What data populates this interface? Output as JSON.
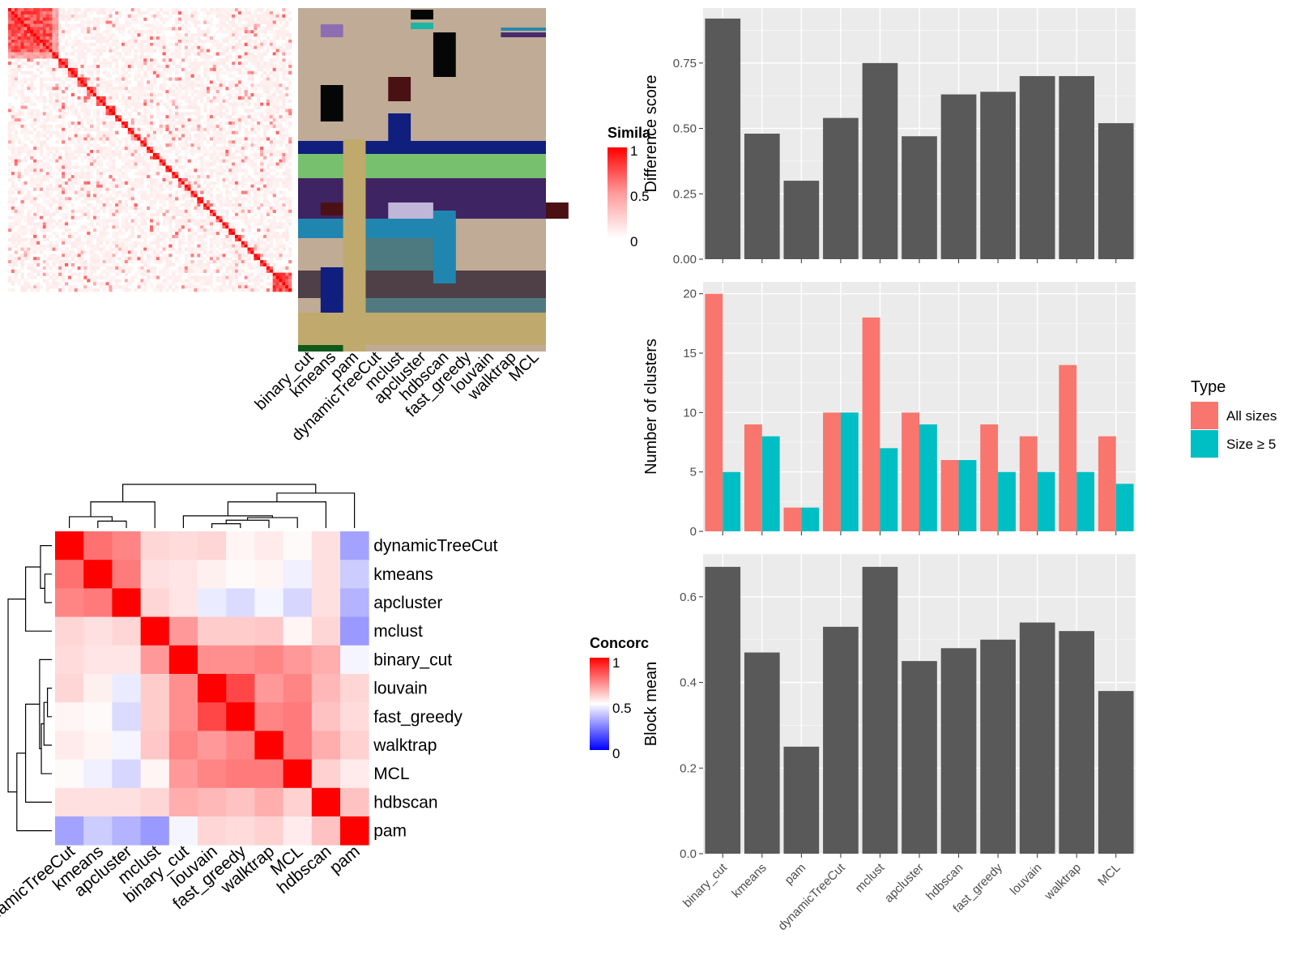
{
  "methods": [
    "binary_cut",
    "kmeans",
    "pam",
    "dynamicTreeCut",
    "mclust",
    "apcluster",
    "hdbscan",
    "fast_greedy",
    "louvain",
    "walktrap",
    "MCL"
  ],
  "similarity_panel": {
    "legend_title": "Simila",
    "legend_ticks": [
      "1",
      "0.5",
      "0"
    ],
    "colors": {
      "high": "#ff0000",
      "mid": "#ff9999",
      "low": "#ffffff"
    },
    "block_sizes": [
      14,
      2,
      3,
      3,
      3,
      3,
      3,
      3,
      2,
      2,
      2,
      2,
      2,
      2,
      2,
      2,
      2,
      2,
      2,
      2,
      2,
      2,
      2,
      2,
      2,
      2,
      2,
      2,
      2,
      2,
      2,
      2,
      2,
      6
    ],
    "class_colors": [
      "#c0ab96",
      "#c0ab96",
      "#c0ab96",
      "#c0ab96",
      "#c0ab96",
      "#c0ab96",
      "#c0ab96",
      "#c0ab96",
      "#c0ab96",
      "#c0ab96",
      "#c0ab96"
    ]
  },
  "concordance_panel": {
    "legend_title": "Concorc",
    "legend_ticks": [
      "1",
      "0.5",
      "0"
    ],
    "colors": {
      "high": "#ff0000",
      "mid": "#ffffff",
      "low": "#0000ff"
    },
    "order": [
      "dynamicTreeCut",
      "kmeans",
      "apcluster",
      "mclust",
      "binary_cut",
      "louvain",
      "fast_greedy",
      "walktrap",
      "MCL",
      "hdbscan",
      "pam"
    ],
    "matrix": [
      [
        1.0,
        0.78,
        0.74,
        0.58,
        0.57,
        0.58,
        0.52,
        0.54,
        0.51,
        0.56,
        0.32
      ],
      [
        0.78,
        1.0,
        0.76,
        0.56,
        0.55,
        0.53,
        0.51,
        0.52,
        0.47,
        0.56,
        0.4
      ],
      [
        0.74,
        0.76,
        1.0,
        0.58,
        0.55,
        0.46,
        0.43,
        0.48,
        0.42,
        0.56,
        0.35
      ],
      [
        0.58,
        0.56,
        0.58,
        1.0,
        0.7,
        0.6,
        0.6,
        0.61,
        0.52,
        0.58,
        0.3
      ],
      [
        0.57,
        0.55,
        0.55,
        0.7,
        1.0,
        0.72,
        0.72,
        0.74,
        0.7,
        0.66,
        0.48
      ],
      [
        0.58,
        0.53,
        0.46,
        0.6,
        0.72,
        1.0,
        0.86,
        0.7,
        0.74,
        0.64,
        0.58
      ],
      [
        0.52,
        0.51,
        0.43,
        0.6,
        0.72,
        0.86,
        1.0,
        0.74,
        0.76,
        0.62,
        0.57
      ],
      [
        0.54,
        0.52,
        0.48,
        0.61,
        0.74,
        0.7,
        0.74,
        1.0,
        0.76,
        0.66,
        0.59
      ],
      [
        0.51,
        0.47,
        0.42,
        0.52,
        0.7,
        0.74,
        0.76,
        0.76,
        1.0,
        0.59,
        0.54
      ],
      [
        0.56,
        0.56,
        0.56,
        0.58,
        0.66,
        0.64,
        0.62,
        0.66,
        0.59,
        1.0,
        0.62
      ],
      [
        0.32,
        0.4,
        0.35,
        0.3,
        0.48,
        0.58,
        0.57,
        0.59,
        0.54,
        0.62,
        1.0
      ]
    ]
  },
  "chart_data": [
    {
      "type": "bar",
      "categories": [
        "binary_cut",
        "kmeans",
        "pam",
        "dynamicTreeCut",
        "mclust",
        "apcluster",
        "hdbscan",
        "fast_greedy",
        "louvain",
        "walktrap",
        "MCL"
      ],
      "values": [
        0.92,
        0.48,
        0.3,
        0.54,
        0.75,
        0.47,
        0.63,
        0.64,
        0.7,
        0.7,
        0.52
      ],
      "ylabel": "Difference score",
      "ylim": [
        0,
        0.96
      ],
      "yticks": [
        "0.00",
        "0.25",
        "0.50",
        "0.75"
      ],
      "bar_color": "#595959",
      "grid": true
    },
    {
      "type": "bar",
      "categories": [
        "binary_cut",
        "kmeans",
        "pam",
        "dynamicTreeCut",
        "mclust",
        "apcluster",
        "hdbscan",
        "fast_greedy",
        "louvain",
        "walktrap",
        "MCL"
      ],
      "series": [
        {
          "name": "All sizes",
          "values": [
            20,
            9,
            2,
            10,
            18,
            10,
            6,
            9,
            8,
            14,
            8
          ],
          "color": "#f8766d"
        },
        {
          "name": "Size ≥ 5",
          "values": [
            5,
            8,
            2,
            10,
            7,
            9,
            6,
            5,
            5,
            5,
            4
          ],
          "color": "#00bfc4"
        }
      ],
      "ylabel": "Number of clusters",
      "ylim": [
        0,
        21
      ],
      "yticks": [
        "0",
        "5",
        "10",
        "15",
        "20"
      ],
      "legend_title": "Type",
      "legend_placement": "right",
      "grid": true
    },
    {
      "type": "bar",
      "categories": [
        "binary_cut",
        "kmeans",
        "pam",
        "dynamicTreeCut",
        "mclust",
        "apcluster",
        "hdbscan",
        "fast_greedy",
        "louvain",
        "walktrap",
        "MCL"
      ],
      "values": [
        0.67,
        0.47,
        0.25,
        0.53,
        0.67,
        0.45,
        0.48,
        0.5,
        0.54,
        0.52,
        0.38
      ],
      "ylabel": "Block mean",
      "ylim": [
        0,
        0.7
      ],
      "yticks": [
        "0.0",
        "0.2",
        "0.4",
        "0.6"
      ],
      "bar_color": "#595959",
      "grid": true
    }
  ]
}
